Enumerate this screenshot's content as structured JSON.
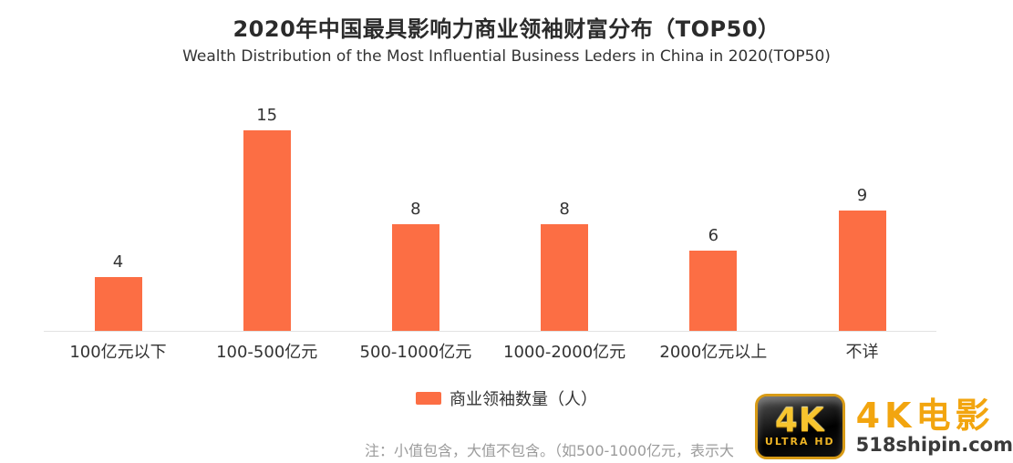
{
  "title": "2020年中国最具影响力商业领袖财富分布（TOP50）",
  "subtitle": "Wealth Distribution of the Most Influential Business Leders in China in 2020(TOP50)",
  "chart_data": {
    "type": "bar",
    "title": "2020年中国最具影响力商业领袖财富分布（TOP50）",
    "subtitle": "Wealth Distribution of the Most Influential Business Leders in China in 2020(TOP50)",
    "categories": [
      "100亿元以下",
      "100-500亿元",
      "500-1000亿元",
      "1000-2000亿元",
      "2000亿元以上",
      "不详"
    ],
    "values": [
      4,
      15,
      8,
      8,
      6,
      9
    ],
    "series_name": "商业领袖数量（人）",
    "bar_color": "#FC6E44",
    "xlabel": "",
    "ylabel": "",
    "ylim": [
      0,
      16
    ],
    "grid": false,
    "legend_position": "bottom",
    "value_labels_shown": true
  },
  "legend": {
    "label": "商业领袖数量（人）",
    "swatch_color": "#FC6E44"
  },
  "note": "注：小值包含，大值不包含。（如500-1000亿元，表示大",
  "watermark": {
    "badge_line1": "4K",
    "badge_line2": "ULTRA HD",
    "site_name": "4K电影",
    "site_url": "518shipin.com",
    "gold_color": "#F2A50F",
    "dark_color": "#3a3a3a"
  },
  "colors": {
    "bar": "#FC6E44",
    "title_text": "#2b2b2b",
    "label_text": "#333333",
    "note_text": "#9b9b9b",
    "axis_line": "#e2e2e2",
    "background": "#ffffff"
  }
}
